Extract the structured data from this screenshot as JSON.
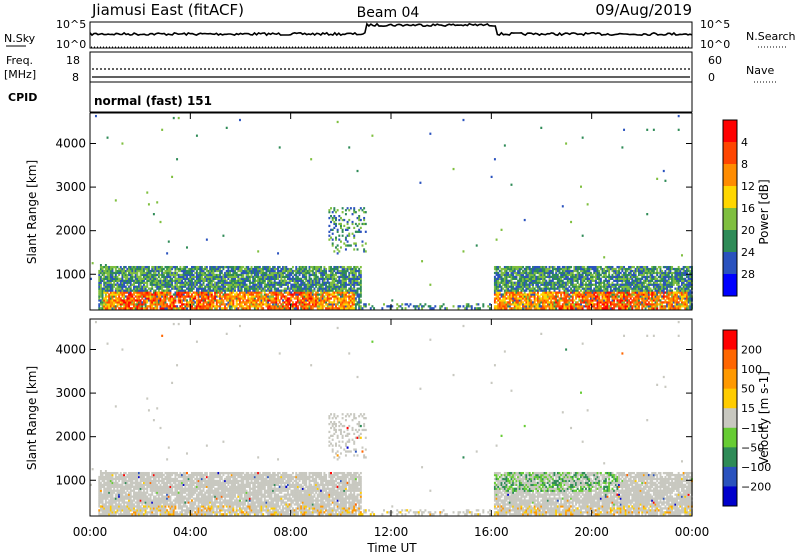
{
  "header": {
    "station": "Jiamusi East (fitACF)",
    "beam": "Beam 04",
    "date": "09/Aug/2019"
  },
  "status_panel": {
    "left_top_label": "N.Sky",
    "left_top_ticks": [
      "10^5",
      "10^0"
    ],
    "right_top_ticks": [
      "10^5",
      "10^0"
    ],
    "right_top_label": "N.Search",
    "left_mid_label_1": "Freq.",
    "left_mid_label_2": "[MHz]",
    "left_mid_ticks": [
      "18",
      "8"
    ],
    "right_mid_ticks": [
      "60",
      "0"
    ],
    "right_mid_label": "Nave",
    "cpid_label": "CPID",
    "cpid_text": "normal (fast) 151"
  },
  "x_axis": {
    "label": "Time UT",
    "ticks": [
      "00:00",
      "04:00",
      "08:00",
      "12:00",
      "16:00",
      "20:00",
      "00:00"
    ]
  },
  "chart_data": [
    {
      "type": "heatmap",
      "name": "power",
      "ylabel": "Slant Range [km]",
      "xlabel": "Time UT",
      "x_range_hours": [
        0,
        24
      ],
      "ylim": [
        180,
        4700
      ],
      "y_ticks": [
        1000,
        2000,
        3000,
        4000
      ],
      "colorbar": {
        "label": "Power [dB]",
        "ticks": [
          "4",
          "8",
          "12",
          "16",
          "20",
          "24",
          "28"
        ],
        "colors": [
          "#0000ff",
          "#2a52be",
          "#2e8b57",
          "#7fbf3f",
          "#ffd700",
          "#ff8c00",
          "#ff4500",
          "#ff0000"
        ]
      }
    },
    {
      "type": "heatmap",
      "name": "velocity",
      "ylabel": "Slant Range [km]",
      "xlabel": "Time UT",
      "x_range_hours": [
        0,
        24
      ],
      "ylim": [
        180,
        4700
      ],
      "y_ticks": [
        1000,
        2000,
        3000,
        4000
      ],
      "colorbar": {
        "label": "Velocity [m s-1]",
        "ticks": [
          "200",
          "100",
          "50",
          "15",
          "−15",
          "−50",
          "−100",
          "−200"
        ],
        "colors": [
          "#0000cc",
          "#2a52be",
          "#2e8b57",
          "#66cc33",
          "#c8c8c0",
          "#ffcc00",
          "#ff9900",
          "#ff6600",
          "#ff0000"
        ]
      }
    }
  ]
}
